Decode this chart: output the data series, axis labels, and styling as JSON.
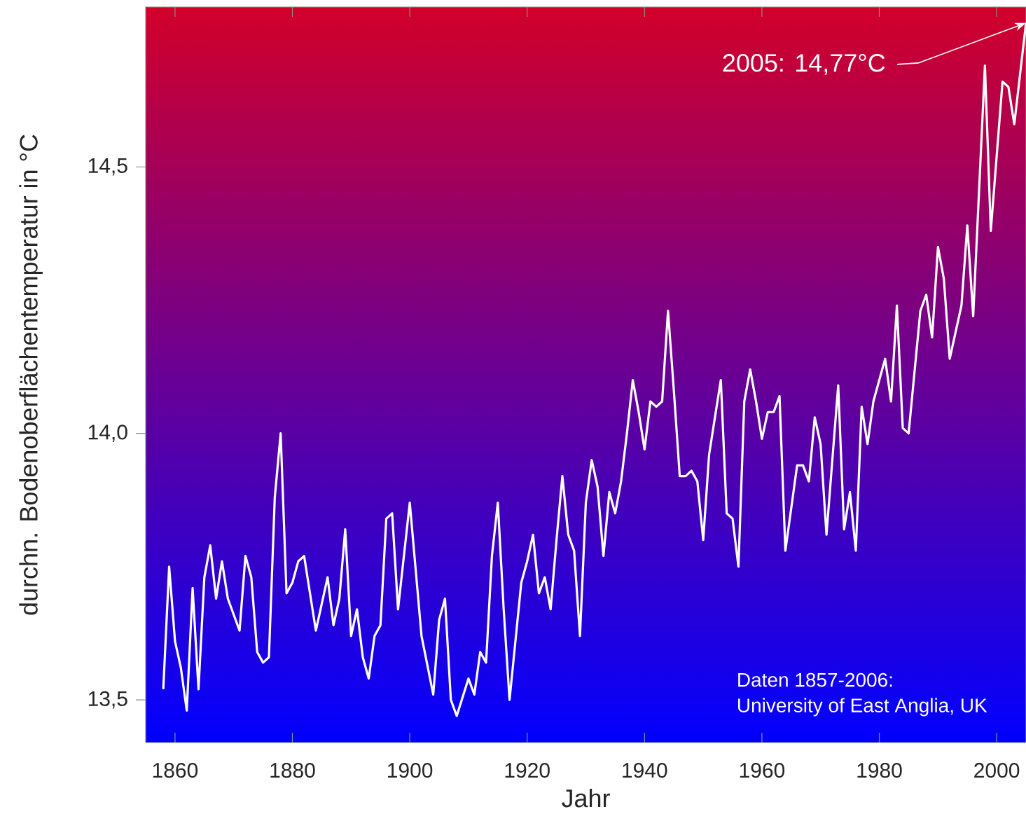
{
  "chart_data": {
    "type": "line",
    "xlabel": "Jahr",
    "ylabel": "durchn. Bodenoberflächentemperatur in °C",
    "color": "#ffffff",
    "line_style": "solid",
    "marker": "none",
    "x": [
      1858,
      1859,
      1860,
      1861,
      1862,
      1863,
      1864,
      1865,
      1866,
      1867,
      1868,
      1869,
      1871,
      1872,
      1873,
      1874,
      1875,
      1876,
      1877,
      1878,
      1879,
      1880,
      1881,
      1882,
      1884,
      1886,
      1887,
      1888,
      1889,
      1890,
      1891,
      1892,
      1893,
      1894,
      1895,
      1896,
      1897,
      1898,
      1900,
      1902,
      1904,
      1905,
      1906,
      1907,
      1908,
      1910,
      1911,
      1912,
      1913,
      1914,
      1915,
      1916,
      1917,
      1918,
      1919,
      1920,
      1921,
      1922,
      1923,
      1924,
      1925,
      1926,
      1927,
      1928,
      1929,
      1930,
      1931,
      1932,
      1933,
      1934,
      1935,
      1936,
      1937,
      1938,
      1939,
      1940,
      1941,
      1942,
      1943,
      1944,
      1945,
      1946,
      1947,
      1948,
      1949,
      1950,
      1951,
      1952,
      1953,
      1954,
      1955,
      1956,
      1957,
      1958,
      1959,
      1960,
      1961,
      1962,
      1963,
      1964,
      1965,
      1966,
      1967,
      1968,
      1969,
      1970,
      1971,
      1973,
      1974,
      1975,
      1976,
      1977,
      1978,
      1979,
      1981,
      1982,
      1983,
      1984,
      1985,
      1987,
      1988,
      1989,
      1990,
      1991,
      1992,
      1993,
      1994,
      1995,
      1996,
      1998,
      1999,
      2001,
      2002,
      2003,
      2005
    ],
    "values": [
      13.52,
      13.75,
      13.61,
      13.56,
      13.48,
      13.71,
      13.52,
      13.73,
      13.79,
      13.69,
      13.76,
      13.69,
      13.63,
      13.77,
      13.73,
      13.59,
      13.57,
      13.58,
      13.88,
      14.0,
      13.7,
      13.72,
      13.76,
      13.77,
      13.63,
      13.73,
      13.64,
      13.69,
      13.82,
      13.62,
      13.67,
      13.58,
      13.54,
      13.62,
      13.64,
      13.84,
      13.85,
      13.67,
      13.87,
      13.62,
      13.51,
      13.65,
      13.69,
      13.5,
      13.47,
      13.54,
      13.51,
      13.59,
      13.57,
      13.77,
      13.87,
      13.67,
      13.5,
      13.61,
      13.72,
      13.76,
      13.81,
      13.7,
      13.73,
      13.67,
      13.8,
      13.92,
      13.81,
      13.78,
      13.62,
      13.87,
      13.95,
      13.9,
      13.77,
      13.89,
      13.85,
      13.91,
      14.0,
      14.1,
      14.04,
      13.97,
      14.06,
      14.05,
      14.06,
      14.23,
      14.08,
      13.92,
      13.92,
      13.93,
      13.91,
      13.8,
      13.96,
      14.03,
      14.1,
      13.85,
      13.84,
      13.75,
      14.06,
      14.12,
      14.06,
      13.99,
      14.04,
      14.04,
      14.07,
      13.78,
      13.86,
      13.94,
      13.94,
      13.91,
      14.03,
      13.98,
      13.81,
      14.09,
      13.82,
      13.89,
      13.78,
      14.05,
      13.98,
      14.06,
      14.14,
      14.06,
      14.24,
      14.01,
      14.0,
      14.23,
      14.26,
      14.18,
      14.35,
      14.29,
      14.14,
      14.19,
      14.24,
      14.39,
      14.22,
      14.69,
      14.38,
      14.66,
      14.65,
      14.58,
      14.77
    ],
    "xlim": [
      1855,
      2005
    ],
    "ylim": [
      13.42,
      14.8
    ],
    "xticks": [
      1860,
      1880,
      1900,
      1920,
      1940,
      1960,
      1980,
      2000
    ],
    "yticks": [
      {
        "value": 13.5,
        "label": "13,5"
      },
      {
        "value": 14.0,
        "label": "14,0"
      },
      {
        "value": 14.5,
        "label": "14,5"
      }
    ],
    "annotations": [
      "2005: 14,77°C",
      "Daten 1857-2006:",
      "University of East Anglia, UK"
    ]
  }
}
